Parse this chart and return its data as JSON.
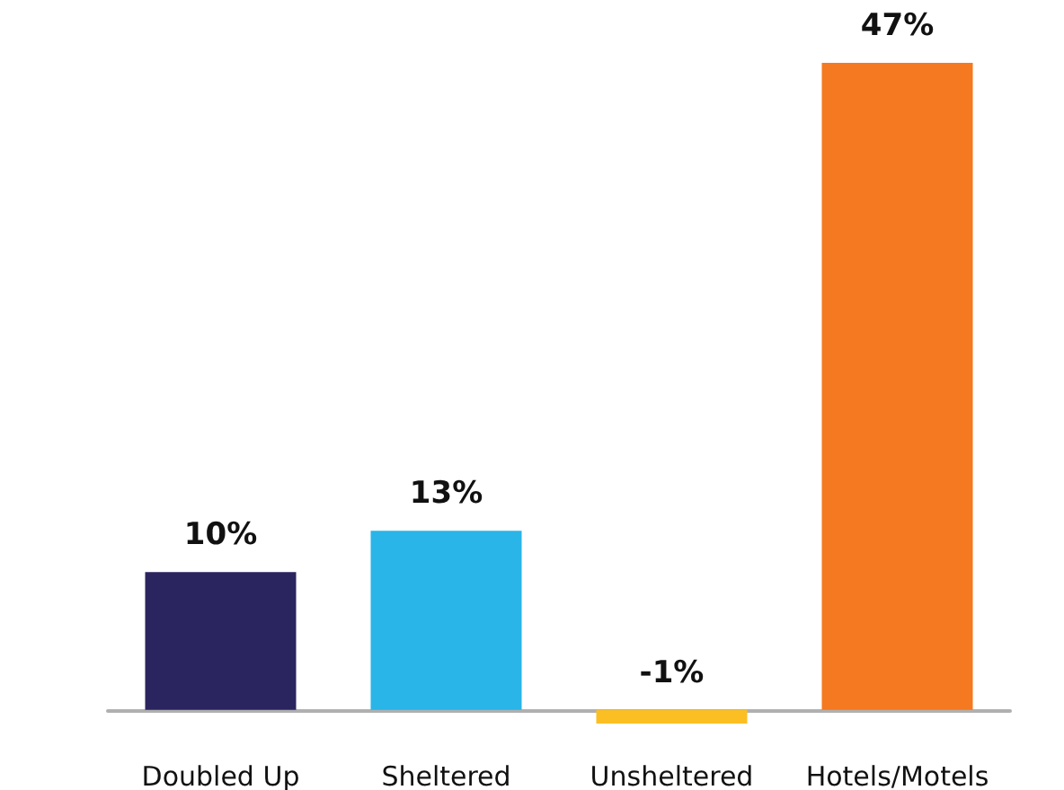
{
  "chart_data": {
    "type": "bar",
    "categories": [
      "Doubled Up",
      "Sheltered",
      "Unsheltered",
      "Hotels/Motels"
    ],
    "values": [
      10,
      13,
      -1,
      47
    ],
    "colors": [
      "#2a255f",
      "#29b5e8",
      "#fbbf24",
      "#f47920"
    ],
    "value_labels": [
      "10%",
      "13%",
      "-1%",
      "47%"
    ]
  }
}
